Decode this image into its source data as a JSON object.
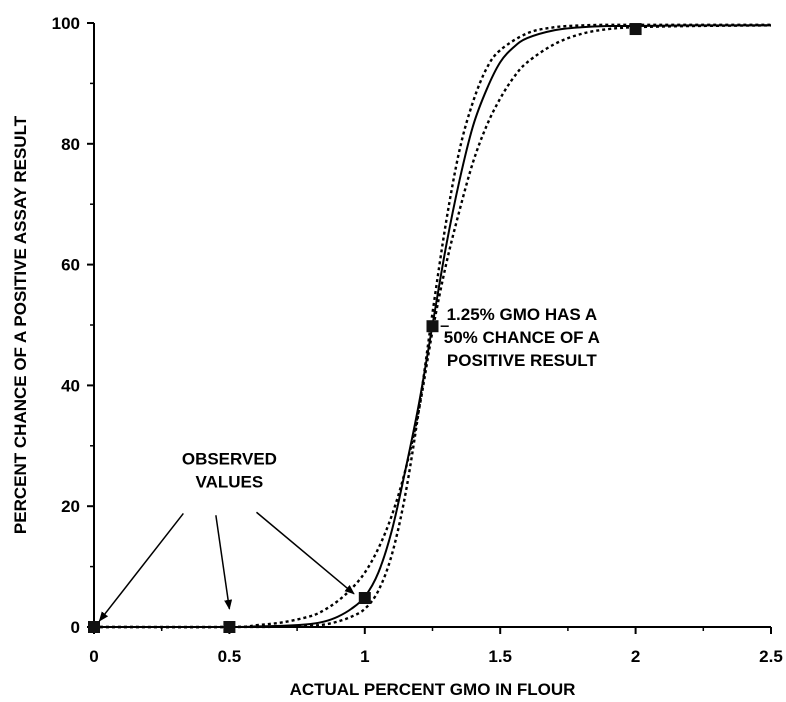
{
  "chart_data": {
    "type": "line",
    "title": "",
    "xlabel": "ACTUAL PERCENT GMO IN FLOUR",
    "ylabel": "PERCENT CHANCE OF A POSITIVE ASSAY RESULT",
    "xlim": [
      0,
      2.5
    ],
    "ylim": [
      0,
      100
    ],
    "x_ticks": [
      0,
      0.5,
      1,
      1.5,
      2,
      2.5
    ],
    "x_tick_labels": [
      "0",
      "0.5",
      "1",
      "1.5",
      "2",
      "2.5"
    ],
    "y_ticks": [
      0,
      20,
      40,
      60,
      80,
      100
    ],
    "y_tick_labels": [
      "0",
      "20",
      "40",
      "60",
      "80",
      "100"
    ],
    "grid": false,
    "series": [
      {
        "style": "solid",
        "x": [
          0,
          0.5,
          0.6,
          0.7,
          0.8,
          0.85,
          0.9,
          0.95,
          1.0,
          1.05,
          1.1,
          1.15,
          1.2,
          1.25,
          1.3,
          1.35,
          1.4,
          1.45,
          1.5,
          1.55,
          1.6,
          1.7,
          1.8,
          1.9,
          2.0,
          2.2,
          2.5
        ],
        "y": [
          0,
          0,
          0.1,
          0.2,
          0.5,
          0.9,
          1.7,
          3.0,
          5.0,
          9.0,
          16.0,
          26.0,
          37.0,
          50.0,
          63.0,
          74.0,
          83.0,
          89.0,
          93.5,
          96.0,
          97.5,
          98.8,
          99.3,
          99.5,
          99.5,
          99.6,
          99.6
        ]
      },
      {
        "style": "dotted",
        "x": [
          0,
          0.5,
          0.6,
          0.7,
          0.8,
          0.85,
          0.9,
          0.95,
          1.0,
          1.05,
          1.1,
          1.15,
          1.2,
          1.25,
          1.3,
          1.35,
          1.4,
          1.45,
          1.5,
          1.55,
          1.6,
          1.7,
          1.8,
          1.9,
          2.0,
          2.2,
          2.5
        ],
        "y": [
          0,
          0,
          0.3,
          0.8,
          1.8,
          2.8,
          4.3,
          6.3,
          9.0,
          13.0,
          18.5,
          26.0,
          36.0,
          49.0,
          60.0,
          69.0,
          77.0,
          83.0,
          87.5,
          91.0,
          93.5,
          96.5,
          98.2,
          99.0,
          99.3,
          99.5,
          99.6
        ]
      },
      {
        "style": "dotted",
        "x": [
          0,
          0.5,
          0.7,
          0.8,
          0.85,
          0.9,
          0.95,
          1.0,
          1.05,
          1.1,
          1.15,
          1.2,
          1.25,
          1.3,
          1.35,
          1.4,
          1.45,
          1.5,
          1.6,
          1.7,
          1.8,
          1.9,
          2.0,
          2.2,
          2.5
        ],
        "y": [
          0,
          0,
          0.05,
          0.2,
          0.4,
          0.9,
          1.7,
          3.0,
          6.0,
          12.0,
          22.0,
          36.0,
          52.0,
          67.0,
          79.0,
          87.0,
          92.5,
          95.5,
          98.3,
          99.3,
          99.6,
          99.7,
          99.7,
          99.7,
          99.7
        ]
      }
    ],
    "markers": [
      {
        "x": 0,
        "y": 0
      },
      {
        "x": 0.5,
        "y": 0
      },
      {
        "x": 1.0,
        "y": 4.8
      },
      {
        "x": 1.25,
        "y": 49.8
      },
      {
        "x": 2.0,
        "y": 99.0
      }
    ],
    "annotations": [
      {
        "name": "observed-values",
        "lines": [
          "OBSERVED",
          "VALUES"
        ],
        "text_at": [
          0.5,
          26
        ],
        "arrows": [
          {
            "from": [
              0.33,
              18.8
            ],
            "to": [
              0.02,
              1.0
            ]
          },
          {
            "from": [
              0.45,
              18.5
            ],
            "to": [
              0.5,
              3.0
            ]
          },
          {
            "from": [
              0.6,
              19.0
            ],
            "to": [
              0.96,
              5.5
            ]
          }
        ]
      },
      {
        "name": "gmo-50-percent",
        "lines": [
          "1.25% GMO HAS A",
          "50% CHANCE OF A",
          "POSITIVE RESULT"
        ],
        "text_at": [
          1.58,
          48
        ],
        "arrows": [
          {
            "from": [
              1.28,
              49.8
            ],
            "to": [
              1.31,
              49.8
            ]
          }
        ]
      }
    ]
  }
}
